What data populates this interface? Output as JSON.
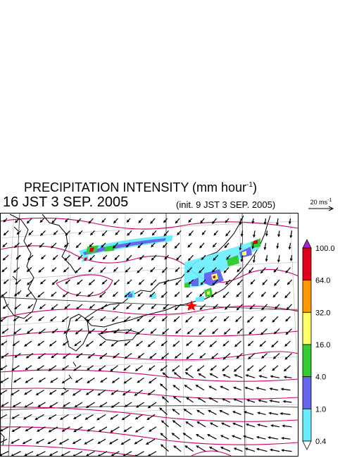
{
  "header": {
    "title_main": "PRECIPITATION INTENSITY (mm hour",
    "title_sup": "-1",
    "title_close": ")",
    "valid_time": "16 JST 3 SEP. 2005",
    "init_time": "(init. 9 JST 3 SEP. 2005)",
    "reference_vector_label": "20 ms",
    "reference_vector_sup": "-1"
  },
  "colorbar": {
    "labels": [
      "100.0",
      "64.0",
      "32.0",
      "16.0",
      "4.0",
      "1.0",
      "0.4"
    ],
    "colors_top_to_bottom": [
      "#e0001a",
      "#ff9900",
      "#ffff66",
      "#33cc33",
      "#6666ee",
      "#66eeff"
    ],
    "overflow_color": "#aa22cc",
    "underflow_color": "#ffffff"
  },
  "map": {
    "contour_color": "#cc0066",
    "coastline_color": "#000000",
    "grid_color": "#c8c8c8",
    "wind_vector_color": "#000000",
    "marker_color": "#ff0000",
    "marker_icon": "star-icon"
  }
}
